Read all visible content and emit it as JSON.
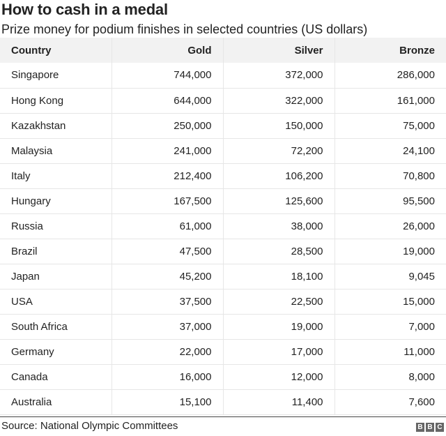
{
  "chart_data": {
    "type": "table",
    "title": "How to cash in a medal",
    "subtitle": "Prize money for podium finishes in selected countries (US dollars)",
    "columns": [
      "Country",
      "Gold",
      "Silver",
      "Bronze"
    ],
    "rows": [
      [
        "Singapore",
        "744,000",
        "372,000",
        "286,000"
      ],
      [
        "Hong Kong",
        "644,000",
        "322,000",
        "161,000"
      ],
      [
        "Kazakhstan",
        "250,000",
        "150,000",
        "75,000"
      ],
      [
        "Malaysia",
        "241,000",
        "72,200",
        "24,100"
      ],
      [
        "Italy",
        "212,400",
        "106,200",
        "70,800"
      ],
      [
        "Hungary",
        "167,500",
        "125,600",
        "95,500"
      ],
      [
        "Russia",
        "61,000",
        "38,000",
        "26,000"
      ],
      [
        "Brazil",
        "47,500",
        "28,500",
        "19,000"
      ],
      [
        "Japan",
        "45,200",
        "18,100",
        "9,045"
      ],
      [
        "USA",
        "37,500",
        "22,500",
        "15,000"
      ],
      [
        "South Africa",
        "37,000",
        "19,000",
        "7,000"
      ],
      [
        "Germany",
        "22,000",
        "17,000",
        "11,000"
      ],
      [
        "Canada",
        "16,000",
        "12,000",
        "8,000"
      ],
      [
        "Australia",
        "15,100",
        "11,400",
        "7,600"
      ]
    ],
    "source": "Source: National Olympic Committees"
  },
  "logo": {
    "letters": [
      "B",
      "B",
      "C"
    ],
    "colors": {
      "box": "#666666",
      "text": "#ffffff"
    }
  }
}
